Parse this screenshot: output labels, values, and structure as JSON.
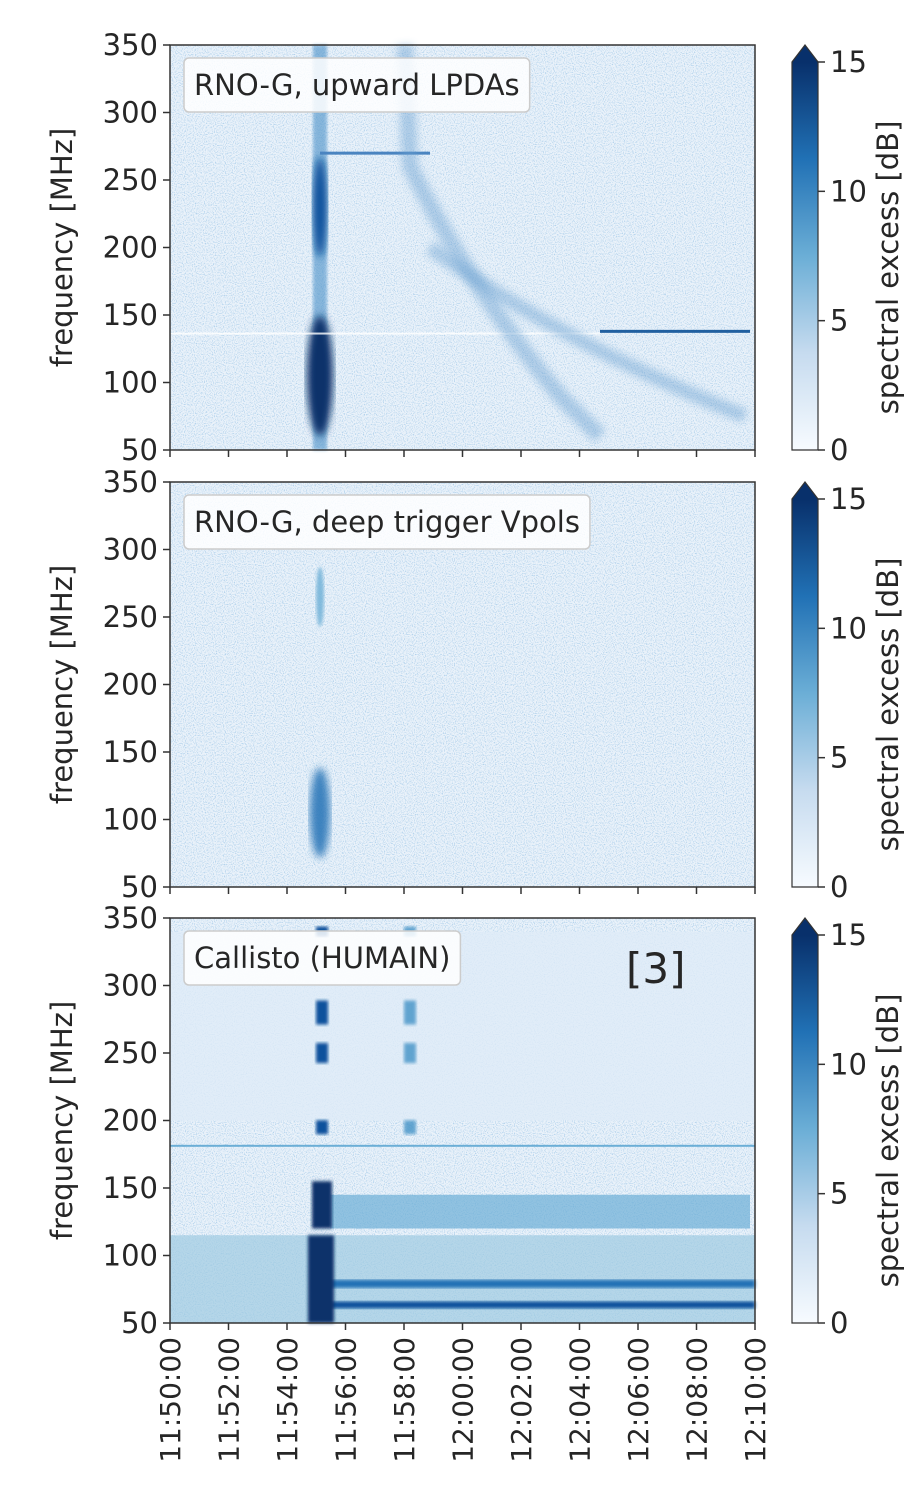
{
  "chart_data": [
    {
      "type": "heatmap",
      "legend_label": "RNO-G, upward LPDAs",
      "y_label": "frequency [MHz]",
      "ylim": [
        50,
        350
      ],
      "yticks": [
        50,
        100,
        150,
        200,
        250,
        300,
        350
      ],
      "xticks": [
        "11:50:00",
        "11:52:00",
        "11:54:00",
        "11:56:00",
        "11:58:00",
        "12:00:00",
        "12:02:00",
        "12:04:00",
        "12:06:00",
        "12:08:00",
        "12:10:00"
      ],
      "colorbar": {
        "label": "spectral excess [dB]",
        "lim": [
          0,
          15
        ],
        "ticks": [
          0,
          5,
          10,
          15
        ]
      }
    },
    {
      "type": "heatmap",
      "legend_label": "RNO-G, deep trigger Vpols",
      "y_label": "frequency [MHz]",
      "ylim": [
        50,
        350
      ],
      "yticks": [
        50,
        100,
        150,
        200,
        250,
        300,
        350
      ],
      "xticks": [
        "11:50:00",
        "11:52:00",
        "11:54:00",
        "11:56:00",
        "11:58:00",
        "12:00:00",
        "12:02:00",
        "12:04:00",
        "12:06:00",
        "12:08:00",
        "12:10:00"
      ],
      "colorbar": {
        "label": "spectral excess [dB]",
        "lim": [
          0,
          15
        ],
        "ticks": [
          0,
          5,
          10,
          15
        ]
      }
    },
    {
      "type": "heatmap",
      "legend_label": "Callisto (HUMAIN)",
      "y_label": "frequency [MHz]",
      "annotation": "[3]",
      "ylim": [
        50,
        350
      ],
      "yticks": [
        50,
        100,
        150,
        200,
        250,
        300,
        350
      ],
      "xticks": [
        "11:50:00",
        "11:52:00",
        "11:54:00",
        "11:56:00",
        "11:58:00",
        "12:00:00",
        "12:02:00",
        "12:04:00",
        "12:06:00",
        "12:08:00",
        "12:10:00"
      ],
      "colorbar": {
        "label": "spectral excess [dB]",
        "lim": [
          0,
          15
        ],
        "ticks": [
          0,
          5,
          10,
          15
        ]
      }
    }
  ]
}
